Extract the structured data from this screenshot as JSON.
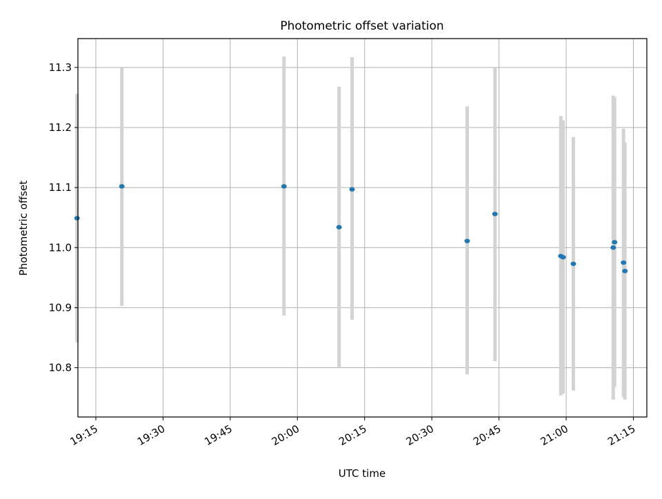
{
  "chart_data": {
    "type": "scatter",
    "title": "Photometric offset variation",
    "xlabel": "UTC time",
    "ylabel": "Photometric offset",
    "x_axis_kind": "time",
    "xlim": [
      "19:11",
      "21:18"
    ],
    "ylim": [
      10.718,
      11.348
    ],
    "x_ticks": [
      "19:15",
      "19:30",
      "19:45",
      "20:00",
      "20:15",
      "20:30",
      "20:45",
      "21:00",
      "21:15"
    ],
    "y_ticks": [
      "10.8",
      "10.9",
      "11.0",
      "11.1",
      "11.2",
      "11.3"
    ],
    "grid": true,
    "legend": "none",
    "colors": {
      "point": "#1f77b4",
      "errorbar": "#d3d3d3",
      "grid": "#b0b0b0"
    },
    "series": [
      {
        "points": [
          {
            "x": "19:10.8",
            "y": 11.049,
            "ylow": 10.842,
            "yhigh": 11.256
          },
          {
            "x": "19:20.8",
            "y": 11.102,
            "ylow": 10.903,
            "yhigh": 11.301
          },
          {
            "x": "19:57.0",
            "y": 11.102,
            "ylow": 10.887,
            "yhigh": 11.318
          },
          {
            "x": "20:09.3",
            "y": 11.034,
            "ylow": 10.8,
            "yhigh": 11.268
          },
          {
            "x": "20:12.2",
            "y": 11.097,
            "ylow": 10.88,
            "yhigh": 11.317
          },
          {
            "x": "20:37.9",
            "y": 11.011,
            "ylow": 10.789,
            "yhigh": 11.235
          },
          {
            "x": "20:44.1",
            "y": 11.056,
            "ylow": 10.811,
            "yhigh": 11.301
          },
          {
            "x": "20:58.8",
            "y": 10.986,
            "ylow": 10.754,
            "yhigh": 11.219
          },
          {
            "x": "20:59.3",
            "y": 10.984,
            "ylow": 10.757,
            "yhigh": 11.212
          },
          {
            "x": "21:01.6",
            "y": 10.973,
            "ylow": 10.762,
            "yhigh": 11.184
          },
          {
            "x": "21:10.5",
            "y": 11.0,
            "ylow": 10.747,
            "yhigh": 11.253
          },
          {
            "x": "21:10.8",
            "y": 11.009,
            "ylow": 10.768,
            "yhigh": 11.25
          },
          {
            "x": "21:12.8",
            "y": 10.975,
            "ylow": 10.751,
            "yhigh": 11.198
          },
          {
            "x": "21:13.1",
            "y": 10.961,
            "ylow": 10.747,
            "yhigh": 11.175
          }
        ]
      }
    ]
  }
}
